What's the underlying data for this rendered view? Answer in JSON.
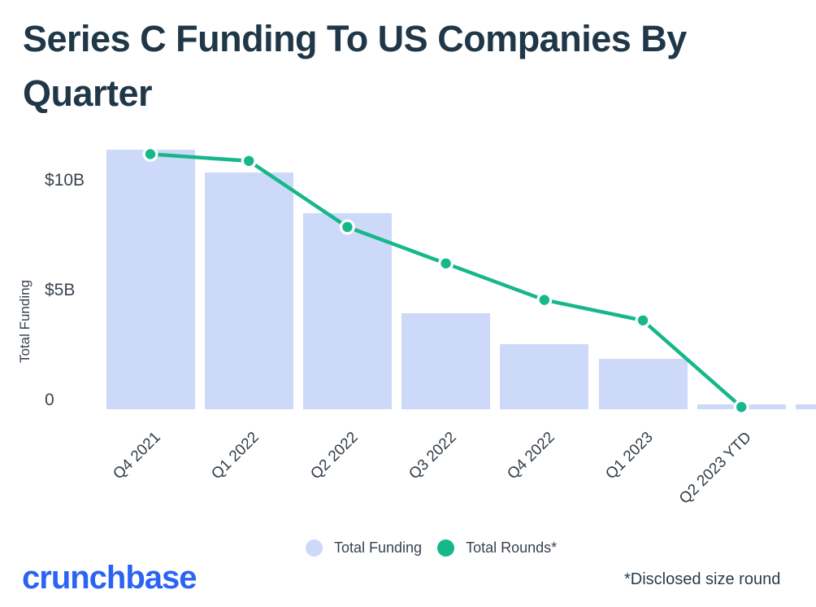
{
  "title_lines": [
    "Series C Funding To US Companies By",
    "Quarter"
  ],
  "y_axis": {
    "title": "Total Funding",
    "ticks": [
      {
        "label": "$10B",
        "value": 10
      },
      {
        "label": "$5B",
        "value": 5
      },
      {
        "label": "0",
        "value": 0
      }
    ]
  },
  "legend": {
    "items": [
      {
        "label": "Total Funding",
        "color": "#cdd9f9"
      },
      {
        "label": "Total Rounds*",
        "color": "#16b78a"
      }
    ]
  },
  "footer": {
    "brand": "crunchbase",
    "footnote": "*Disclosed size round"
  },
  "chart_data": {
    "type": "bar+line",
    "title": "Series C Funding To US Companies By Quarter",
    "ylabel": "Total Funding",
    "categories": [
      "Q4 2021",
      "Q1 2022",
      "Q2 2022",
      "Q3 2022",
      "Q4 2022",
      "Q1 2023",
      "Q2 2023 YTD"
    ],
    "series": [
      {
        "name": "Total Funding",
        "type": "bar",
        "unit": "USD billions",
        "values": [
          11.4,
          10.4,
          8.6,
          4.2,
          2.85,
          2.2,
          0.2
        ]
      },
      {
        "name": "Total Rounds*",
        "type": "line",
        "axis": "hidden (no right axis shown)",
        "plotted_y_in_funding_axis_billions": [
          11.2,
          10.9,
          8.0,
          6.4,
          4.8,
          3.9,
          0.1
        ]
      }
    ],
    "partial_next_bar_billion": 0.2,
    "ylim": [
      0,
      11.5
    ],
    "grid": false,
    "legend_position": "bottom-center",
    "colors": {
      "bar": "#cdd9f9",
      "line": "#16b78a",
      "title": "#203748",
      "brand": "#2b63f3"
    }
  }
}
